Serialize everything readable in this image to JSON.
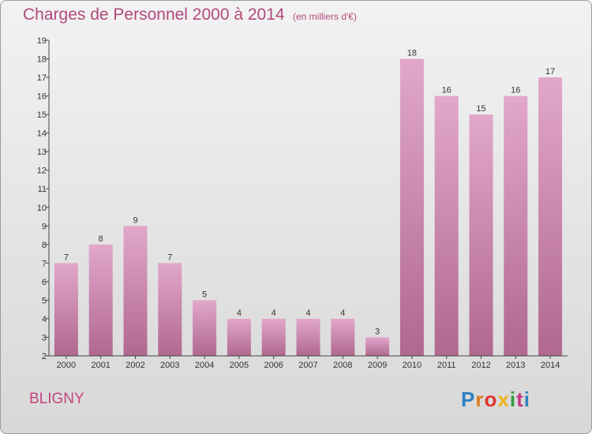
{
  "header": {
    "title": "Charges de Personnel 2000 à 2014",
    "subtitle": "(en milliers d'€)"
  },
  "footer": {
    "commune": "BLIGNY",
    "logo_text": "Proxiti"
  },
  "colors": {
    "title": "#b14a7c",
    "bar_top": "#e2a7cb",
    "bar_bottom": "#b0688f",
    "logo": [
      "#2e7fc1",
      "#e07a1f",
      "#e2332c",
      "#f1b31c",
      "#2e9e3e",
      "#c0387f",
      "#2e7fc1"
    ]
  },
  "chart_data": {
    "type": "bar",
    "categories": [
      "2000",
      "2001",
      "2002",
      "2003",
      "2004",
      "2005",
      "2006",
      "2007",
      "2008",
      "2009",
      "2010",
      "2011",
      "2012",
      "2013",
      "2014"
    ],
    "values": [
      7,
      8,
      9,
      7,
      5,
      4,
      4,
      4,
      4,
      3,
      18,
      16,
      15,
      16,
      17
    ],
    "title": "Charges de Personnel 2000 à 2014",
    "ylim": [
      2,
      19
    ],
    "yticks": [
      2,
      3,
      4,
      5,
      6,
      7,
      8,
      9,
      10,
      11,
      12,
      13,
      14,
      15,
      16,
      17,
      18,
      19
    ],
    "grid": false,
    "data_labels": true
  }
}
